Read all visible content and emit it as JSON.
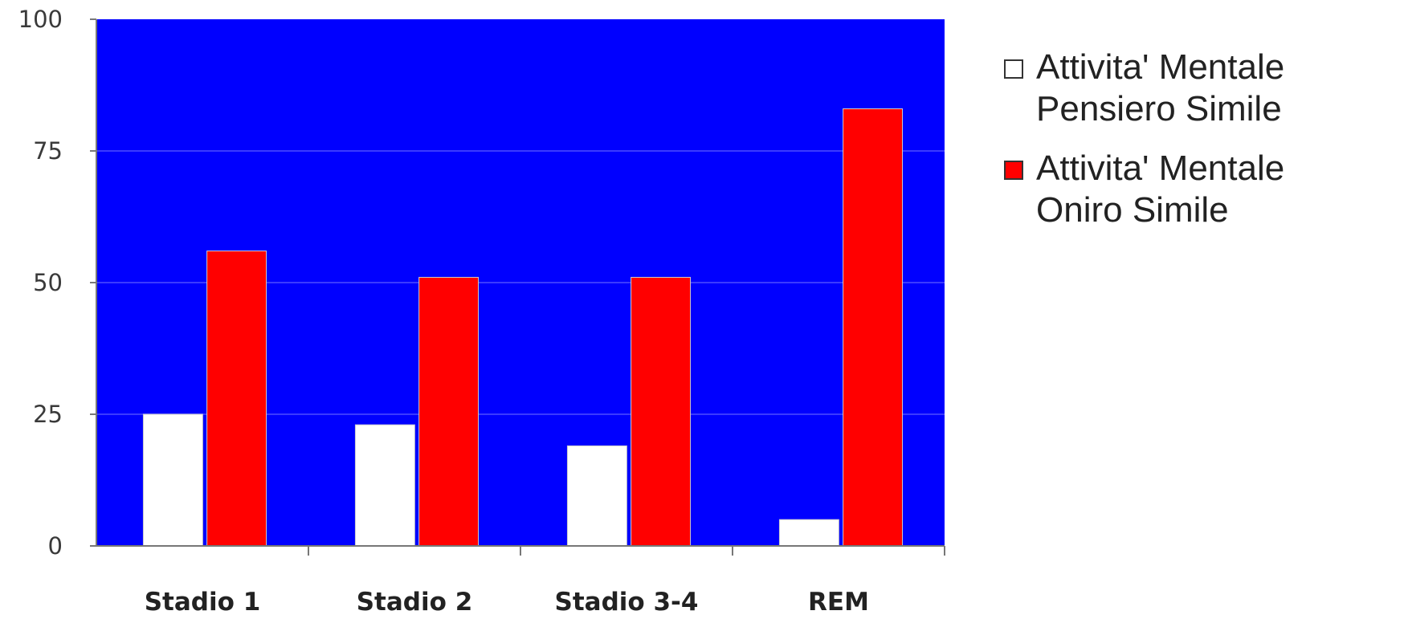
{
  "chart_data": {
    "type": "bar",
    "categories": [
      "Stadio 1",
      "Stadio 2",
      "Stadio 3-4",
      "REM"
    ],
    "series": [
      {
        "name": "Attivita' Mentale\nPensiero Simile",
        "values": [
          25,
          23,
          19,
          5
        ],
        "color": "#ffffff"
      },
      {
        "name": "Attivita' Mentale\nOniro Simile",
        "values": [
          56,
          51,
          51,
          83
        ],
        "color": "#ff0000"
      }
    ],
    "ylim": [
      0,
      100
    ],
    "yticks": [
      0,
      25,
      50,
      75,
      100
    ],
    "grid": true,
    "plot_background": "#0000ff",
    "legend_position": "right",
    "title": "",
    "xlabel": "",
    "ylabel": ""
  }
}
